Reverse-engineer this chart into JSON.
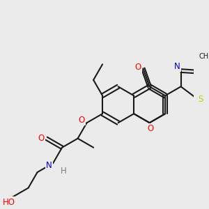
{
  "background_color": "#ebebeb",
  "bond_color": "#1a1a1a",
  "atom_colors": {
    "O": "#ff0000",
    "N": "#0000cc",
    "S": "#cccc00",
    "H": "#7a7a7a",
    "C": "#1a1a1a"
  },
  "figsize": [
    3.0,
    3.0
  ],
  "dpi": 100
}
